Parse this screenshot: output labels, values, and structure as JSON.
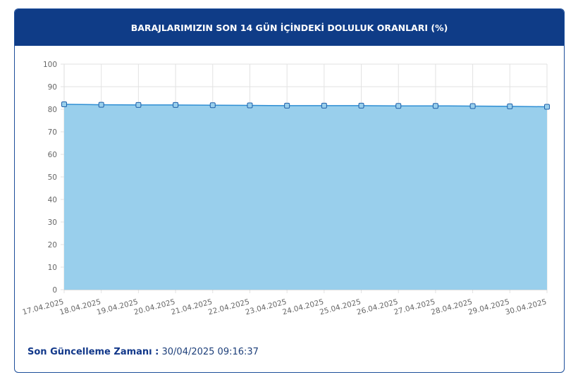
{
  "chart_data": {
    "type": "area",
    "title": "BARAJLARIMIZIN SON 14 GÜN İÇİNDEKİ DOLULUK ORANLARI (%)",
    "categories": [
      "17.04.2025",
      "18.04.2025",
      "19.04.2025",
      "20.04.2025",
      "21.04.2025",
      "22.04.2025",
      "23.04.2025",
      "24.04.2025",
      "25.04.2025",
      "26.04.2025",
      "27.04.2025",
      "28.04.2025",
      "29.04.2025",
      "30.04.2025"
    ],
    "values": [
      82.2,
      82.0,
      81.9,
      81.9,
      81.8,
      81.7,
      81.6,
      81.6,
      81.6,
      81.5,
      81.5,
      81.4,
      81.3,
      81.1
    ],
    "color": "#2f8fd4",
    "fill": "#99cfec",
    "ylim": [
      0,
      100
    ],
    "yticks": [
      0,
      10,
      20,
      30,
      40,
      50,
      60,
      70,
      80,
      90,
      100
    ],
    "grid": true
  },
  "footer": {
    "label": "Son Güncelleme Zamanı :",
    "value": "30/04/2025 09:16:37"
  }
}
